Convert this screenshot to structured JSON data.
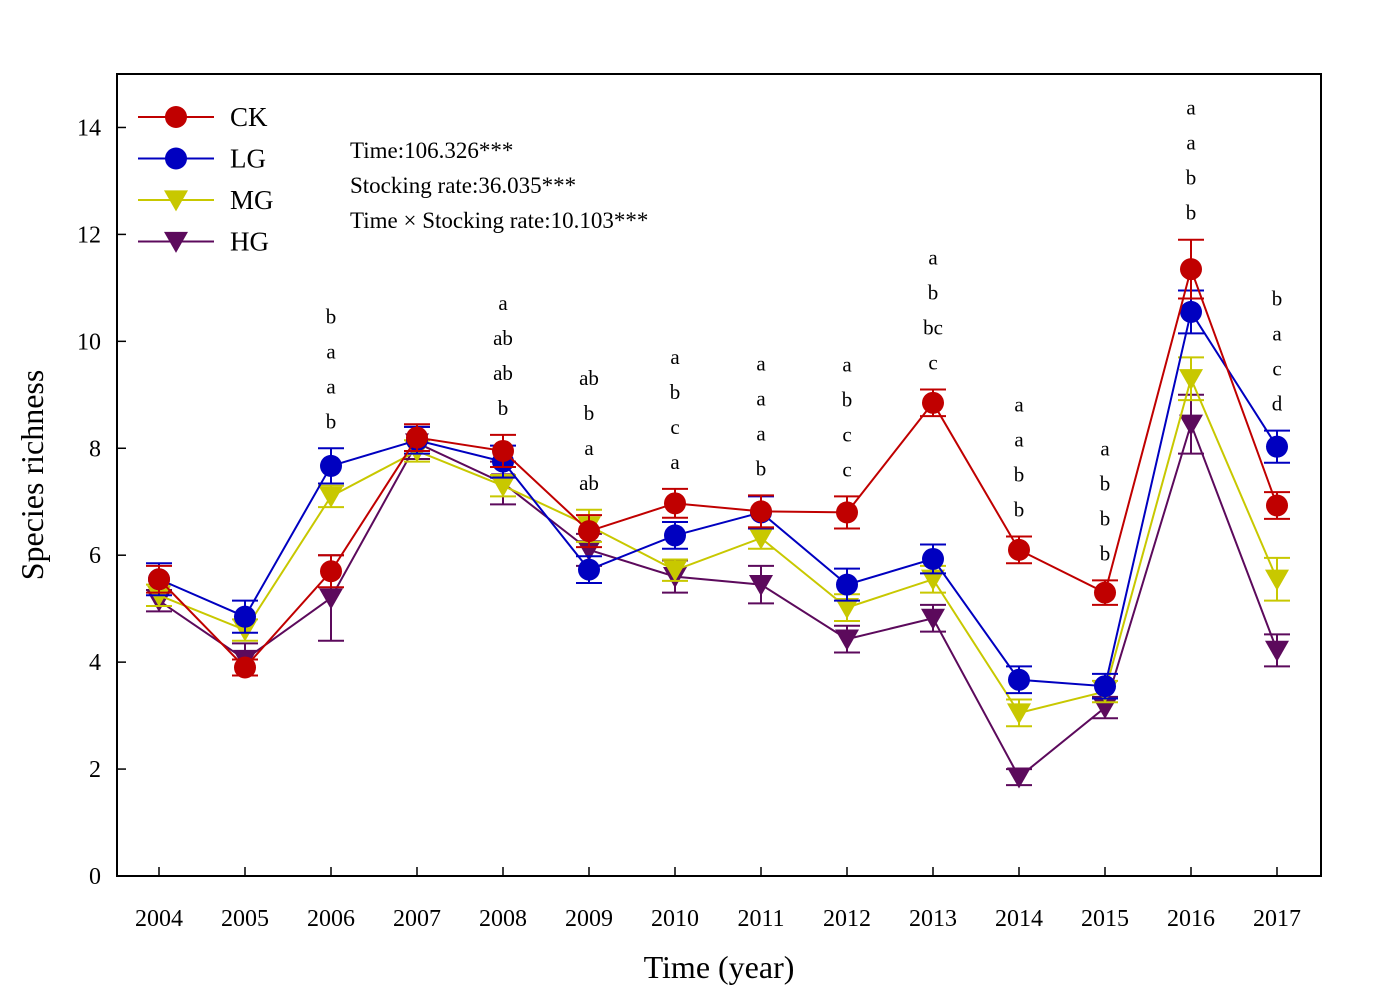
{
  "chart_data": {
    "type": "line",
    "xlabel": "Time (year)",
    "ylabel": "Species richness",
    "ylim": [
      0,
      15
    ],
    "yticks": [
      0,
      2,
      4,
      6,
      8,
      10,
      12,
      14
    ],
    "categories": [
      "2004",
      "2005",
      "2006",
      "2007",
      "2008",
      "2009",
      "2010",
      "2011",
      "2012",
      "2013",
      "2014",
      "2015",
      "2016",
      "2017"
    ],
    "legend_position": "top-left",
    "series": [
      {
        "name": "CK",
        "color": "#c00000",
        "marker": "circle",
        "values": [
          5.55,
          3.9,
          5.7,
          8.2,
          7.95,
          6.45,
          6.97,
          6.82,
          6.8,
          8.85,
          6.1,
          5.3,
          11.35,
          6.93
        ],
        "errors": [
          0.25,
          0.15,
          0.3,
          0.25,
          0.3,
          0.3,
          0.27,
          0.3,
          0.3,
          0.25,
          0.25,
          0.23,
          0.55,
          0.25
        ]
      },
      {
        "name": "LG",
        "color": "#0000c0",
        "marker": "circle",
        "values": [
          5.55,
          4.85,
          7.67,
          8.15,
          7.75,
          5.73,
          6.37,
          6.8,
          5.45,
          5.93,
          3.67,
          3.55,
          10.55,
          8.03
        ],
        "errors": [
          0.3,
          0.3,
          0.33,
          0.25,
          0.3,
          0.25,
          0.25,
          0.3,
          0.3,
          0.27,
          0.25,
          0.23,
          0.4,
          0.3
        ]
      },
      {
        "name": "MG",
        "color": "#c8c800",
        "marker": "triangle-down",
        "values": [
          5.25,
          4.6,
          7.1,
          7.95,
          7.3,
          6.55,
          5.72,
          6.32,
          5.02,
          5.55,
          3.05,
          3.45,
          9.3,
          5.55
        ],
        "errors": [
          0.2,
          0.2,
          0.2,
          0.2,
          0.2,
          0.3,
          0.2,
          0.2,
          0.25,
          0.25,
          0.25,
          0.2,
          0.4,
          0.4
        ]
      },
      {
        "name": "HG",
        "color": "#5c0a5c",
        "marker": "triangle-down",
        "values": [
          5.15,
          4.05,
          5.2,
          8.1,
          7.35,
          6.1,
          5.6,
          5.45,
          4.43,
          4.82,
          1.85,
          3.15,
          8.45,
          4.22
        ],
        "errors": [
          0.2,
          0.3,
          0.8,
          0.3,
          0.4,
          0.3,
          0.3,
          0.35,
          0.25,
          0.25,
          0.15,
          0.2,
          0.55,
          0.3
        ]
      }
    ],
    "significance_letters": [
      {
        "year": "2006",
        "letters": [
          "b",
          "a",
          "a",
          "b"
        ]
      },
      {
        "year": "2008",
        "letters": [
          "a",
          "ab",
          "ab",
          "b"
        ]
      },
      {
        "year": "2009",
        "letters": [
          "ab",
          "b",
          "a",
          "ab"
        ]
      },
      {
        "year": "2010",
        "letters": [
          "a",
          "b",
          "c",
          "a"
        ]
      },
      {
        "year": "2011",
        "letters": [
          "a",
          "a",
          "a",
          "b"
        ]
      },
      {
        "year": "2012",
        "letters": [
          "a",
          "b",
          "c",
          "c"
        ]
      },
      {
        "year": "2013",
        "letters": [
          "a",
          "b",
          "bc",
          "c"
        ]
      },
      {
        "year": "2014",
        "letters": [
          "a",
          "a",
          "b",
          "b"
        ]
      },
      {
        "year": "2015",
        "letters": [
          "a",
          "b",
          "b",
          "b"
        ]
      },
      {
        "year": "2016",
        "letters": [
          "a",
          "a",
          "b",
          "b"
        ]
      },
      {
        "year": "2017",
        "letters": [
          "b",
          "a",
          "c",
          "d"
        ]
      }
    ],
    "annotations": [
      "Time:106.326***",
      "Stocking rate:36.035***",
      "Time × Stocking rate:10.103***"
    ]
  }
}
